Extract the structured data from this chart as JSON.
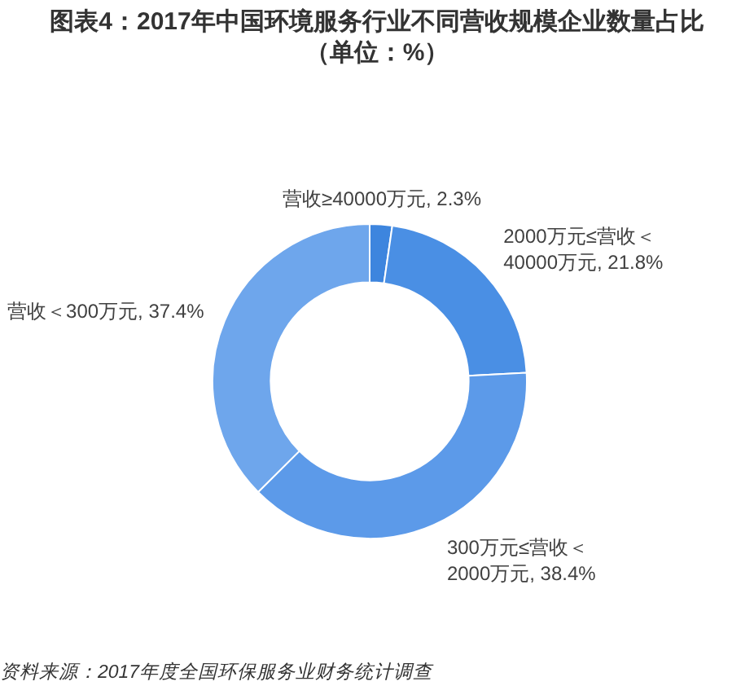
{
  "chart_data": {
    "type": "donut",
    "title": "图表4：2017年中国环境服务行业不同营收规模企业数量占比",
    "subtitle": "（单位：%）",
    "categories": [
      "营收≥40000万元",
      "2000万元≤营收＜40000万元",
      "300万元≤营收＜2000万元",
      "营收＜300万元"
    ],
    "values": [
      2.3,
      21.8,
      38.4,
      37.4
    ],
    "value_labels": [
      "2.3%",
      "21.8%",
      "38.4%",
      "37.4%"
    ],
    "colors": [
      "#3d85de",
      "#4a8fe4",
      "#5c9ae9",
      "#6ea6ec"
    ],
    "legend": false,
    "annotations": [
      "资料来源：2017年度全国环保服务业财务统计调查"
    ]
  }
}
